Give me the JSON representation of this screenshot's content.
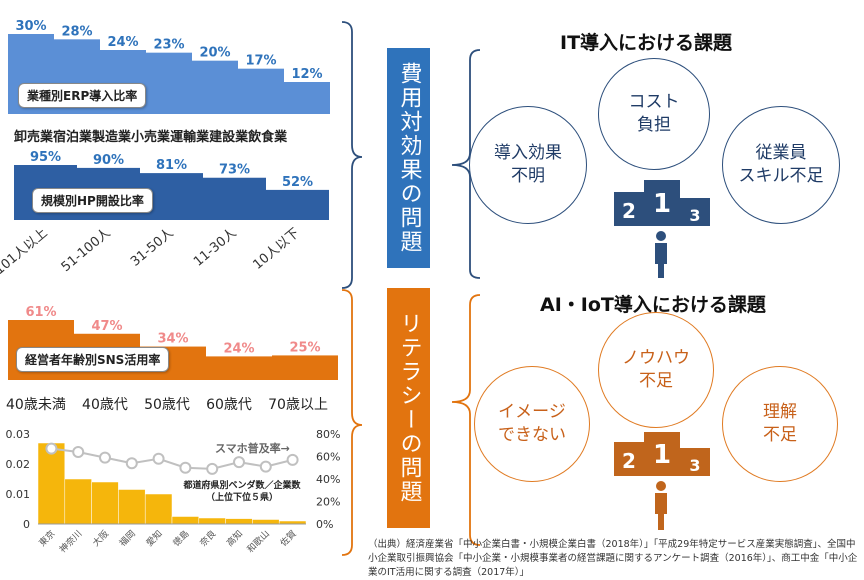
{
  "erp": {
    "label": "業種別ERP導入比率",
    "categories": [
      "卸売業",
      "宿泊業",
      "製造業",
      "小売業",
      "運輸業",
      "建設業",
      "飲食業"
    ],
    "values": [
      30,
      28,
      24,
      23,
      20,
      17,
      12
    ],
    "value_labels": [
      "30%",
      "28%",
      "24%",
      "23%",
      "20%",
      "17%",
      "12%"
    ],
    "color": "#5b8fd6"
  },
  "hp": {
    "label": "規模別HP開設比率",
    "categories": [
      "101人以上",
      "51-100人",
      "31-50人",
      "11-30人",
      "10人以下"
    ],
    "values": [
      95,
      90,
      81,
      73,
      52
    ],
    "value_labels": [
      "95%",
      "90%",
      "81%",
      "73%",
      "52%"
    ],
    "color": "#2e5fa3"
  },
  "sns": {
    "label": "経営者年齢別SNS活用率",
    "categories": [
      "40歳未満",
      "40歳代",
      "50歳代",
      "60歳代",
      "70歳以上"
    ],
    "values": [
      61,
      47,
      34,
      24,
      25
    ],
    "value_labels": [
      "61%",
      "47%",
      "34%",
      "24%",
      "25%"
    ],
    "color": "#e2740f"
  },
  "chart_data": [
    {
      "type": "bar",
      "title": "業種別ERP導入比率",
      "categories": [
        "卸売業",
        "宿泊業",
        "製造業",
        "小売業",
        "運輸業",
        "建設業",
        "飲食業"
      ],
      "values": [
        30,
        28,
        24,
        23,
        20,
        17,
        12
      ]
    },
    {
      "type": "bar",
      "title": "規模別HP開設比率",
      "categories": [
        "101人以上",
        "51-100人",
        "31-50人",
        "11-30人",
        "10人以下"
      ],
      "values": [
        95,
        90,
        81,
        73,
        52
      ]
    },
    {
      "type": "bar",
      "title": "経営者年齢別SNS活用率",
      "categories": [
        "40歳未満",
        "40歳代",
        "50歳代",
        "60歳代",
        "70歳以上"
      ],
      "values": [
        61,
        47,
        34,
        24,
        25
      ]
    },
    {
      "type": "bar",
      "title": "都道府県別ベンダ数／企業数（上位下位５県）",
      "categories": [
        "東京",
        "神奈川",
        "大阪",
        "福岡",
        "愛知",
        "徳島",
        "奈良",
        "高知",
        "和歌山",
        "佐賀"
      ],
      "series": [
        {
          "name": "都道府県別ベンダ数／企業数",
          "values": [
            0.027,
            0.015,
            0.014,
            0.0115,
            0.01,
            0.0025,
            0.002,
            0.0018,
            0.0015,
            0.001
          ]
        },
        {
          "name": "スマホ普及率",
          "values": [
            67,
            64,
            59,
            54,
            58,
            50,
            49,
            55,
            51,
            57
          ]
        }
      ],
      "y_left": {
        "ticks": [
          "0",
          "0.01",
          "0.02",
          "0.03"
        ],
        "range": [
          0,
          0.03
        ]
      },
      "y_right": {
        "ticks": [
          "0%",
          "20%",
          "40%",
          "60%",
          "80%"
        ],
        "range": [
          0,
          80
        ]
      }
    }
  ],
  "pref": {
    "categories": [
      "東京",
      "神奈川",
      "大阪",
      "福岡",
      "愛知",
      "徳島",
      "奈良",
      "高知",
      "和歌山",
      "佐賀"
    ],
    "bar_values": [
      0.027,
      0.015,
      0.014,
      0.0115,
      0.01,
      0.0025,
      0.002,
      0.0018,
      0.0015,
      0.001
    ],
    "line_values": [
      67,
      64,
      59,
      54,
      58,
      50,
      49,
      55,
      51,
      57
    ],
    "left_ticks": [
      "0",
      "0.01",
      "0.02",
      "0.03"
    ],
    "right_ticks": [
      "0%",
      "20%",
      "40%",
      "60%",
      "80%"
    ],
    "bar_label_line1": "都道府県別ベンダ数／企業数",
    "bar_label_line2": "（上位下位５県）",
    "line_label": "スマホ普及率→",
    "bar_color": "#f5b60c",
    "line_color": "#c0c0c0"
  },
  "bands": {
    "cost": {
      "text": "費用対効果の問題",
      "color": "#2f73bb"
    },
    "literacy": {
      "text": "リテラシーの問題",
      "color": "#e2740f"
    }
  },
  "it": {
    "title": "IT導入における課題",
    "circles": [
      "コスト\n負担",
      "導入効果\n不明",
      "従業員\nスキル不足"
    ],
    "podium": [
      "2",
      "1",
      "3"
    ],
    "color": "#2d4f7c"
  },
  "ai": {
    "title": "AI・IoT導入における課題",
    "circles": [
      "ノウハウ\n不足",
      "イメージ\nできない",
      "理解\n不足"
    ],
    "podium": [
      "2",
      "1",
      "3"
    ],
    "color": "#c0651c"
  },
  "source_note": "（出典）経済産業省「中小企業白書・小規模企業白書（2018年）」「平成29年特定サービス産業実態調査」、全国中小企業取引振興協会「中小企業・小規模事業者の経営課題に関するアンケート調査（2016年）」、商工中金「中小企業のIT活用に関する調査（2017年）」"
}
